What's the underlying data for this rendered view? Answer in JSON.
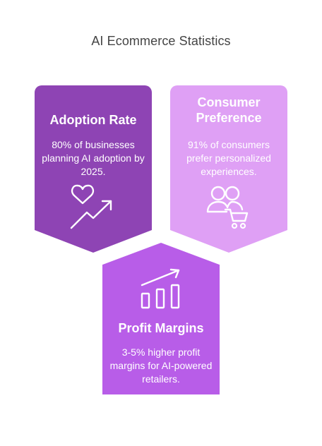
{
  "title": "AI Ecommerce Statistics",
  "cards": [
    {
      "title": "Adoption Rate",
      "description": "80% of businesses planning AI adoption by 2025.",
      "icon": "heart-trend-up-icon",
      "color": "#8e44b4"
    },
    {
      "title": "Consumer Preference",
      "description": "91% of consumers prefer personalized experiences.",
      "icon": "users-cart-icon",
      "color": "#dfa0f5"
    },
    {
      "title": "Profit Margins",
      "description": "3-5% higher profit margins for AI-powered retailers.",
      "icon": "bar-chart-trend-icon",
      "color": "#b85de8"
    }
  ]
}
